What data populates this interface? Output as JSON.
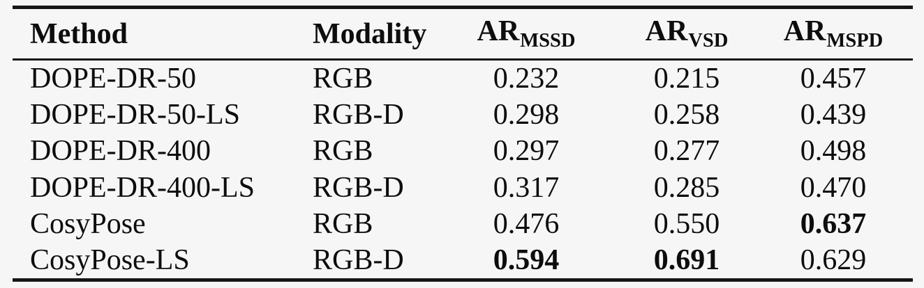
{
  "table": {
    "columns": [
      {
        "label": "Method",
        "sub": ""
      },
      {
        "label": "Modality",
        "sub": ""
      },
      {
        "label": "AR",
        "sub": "MSSD"
      },
      {
        "label": "AR",
        "sub": "VSD"
      },
      {
        "label": "AR",
        "sub": "MSPD"
      }
    ],
    "rows": [
      {
        "cells": [
          "DOPE-DR-50",
          "RGB",
          "0.232",
          "0.215",
          "0.457"
        ],
        "bold": [
          false,
          false,
          false,
          false,
          false
        ]
      },
      {
        "cells": [
          "DOPE-DR-50-LS",
          "RGB-D",
          "0.298",
          "0.258",
          "0.439"
        ],
        "bold": [
          false,
          false,
          false,
          false,
          false
        ]
      },
      {
        "cells": [
          "DOPE-DR-400",
          "RGB",
          "0.297",
          "0.277",
          "0.498"
        ],
        "bold": [
          false,
          false,
          false,
          false,
          false
        ]
      },
      {
        "cells": [
          "DOPE-DR-400-LS",
          "RGB-D",
          "0.317",
          "0.285",
          "0.470"
        ],
        "bold": [
          false,
          false,
          false,
          false,
          false
        ]
      },
      {
        "cells": [
          "CosyPose",
          "RGB",
          "0.476",
          "0.550",
          "0.637"
        ],
        "bold": [
          false,
          false,
          false,
          false,
          true
        ]
      },
      {
        "cells": [
          "CosyPose-LS",
          "RGB-D",
          "0.594",
          "0.691",
          "0.629"
        ],
        "bold": [
          false,
          false,
          true,
          true,
          false
        ]
      }
    ]
  },
  "colors": {
    "background": "#f6f6f6",
    "text": "#0d0d0d",
    "rule": "#161616"
  }
}
